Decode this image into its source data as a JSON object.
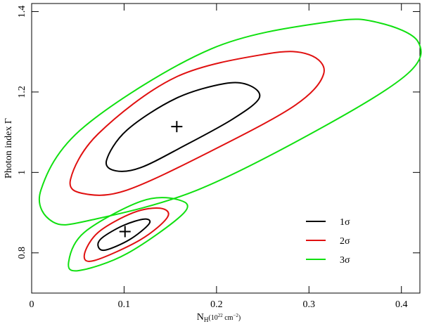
{
  "chart_data": {
    "type": "contour",
    "xlabel": [
      "N",
      "H",
      "(10",
      "22",
      " cm",
      "−2",
      ")"
    ],
    "ylabel": "Photon index Γ",
    "xlim": [
      0,
      0.42
    ],
    "ylim": [
      0.7,
      1.42
    ],
    "xticks": [
      0,
      0.1,
      0.2,
      0.3,
      0.4
    ],
    "yticks": [
      0.8,
      1,
      1.2,
      1.4
    ],
    "legend": "lower right",
    "series": [
      {
        "name": "1σ",
        "color": "#000000",
        "regions": [
          {
            "x": [
              0.081,
              0.091,
              0.118,
              0.164,
              0.217,
              0.246,
              0.236,
              0.209,
              0.156,
              0.103
            ],
            "y": [
              1.03,
              1.004,
              1.012,
              1.065,
              1.132,
              1.184,
              1.216,
              1.221,
              1.184,
              1.105
            ]
          },
          {
            "x": [
              0.072,
              0.08,
              0.106,
              0.127,
              0.122,
              0.099,
              0.076
            ],
            "y": [
              0.816,
              0.807,
              0.833,
              0.872,
              0.884,
              0.868,
              0.837
            ]
          }
        ]
      },
      {
        "name": "2σ",
        "color": "#e01010",
        "regions": [
          {
            "x": [
              0.042,
              0.057,
              0.103,
              0.194,
              0.285,
              0.316,
              0.3,
              0.255,
              0.156,
              0.072
            ],
            "y": [
              0.982,
              0.947,
              0.956,
              1.053,
              1.167,
              1.246,
              1.293,
              1.295,
              1.237,
              1.096
            ]
          },
          {
            "x": [
              0.057,
              0.068,
              0.118,
              0.147,
              0.139,
              0.11,
              0.072
            ],
            "y": [
              0.795,
              0.781,
              0.833,
              0.889,
              0.911,
              0.9,
              0.851
            ]
          }
        ]
      },
      {
        "name": "3σ",
        "color": "#10e010",
        "regions": [
          {
            "x": [
              0.01,
              0.023,
              0.065,
              0.179,
              0.316,
              0.407,
              0.418,
              0.376,
              0.323,
              0.194,
              0.057
            ],
            "y": [
              0.956,
              0.877,
              0.882,
              0.956,
              1.114,
              1.246,
              1.325,
              1.372,
              1.375,
              1.307,
              1.114
            ]
          },
          {
            "x": [
              0.04,
              0.051,
              0.103,
              0.165,
              0.157,
              0.118,
              0.057
            ],
            "y": [
              0.777,
              0.756,
              0.798,
              0.9,
              0.933,
              0.928,
              0.851
            ]
          }
        ]
      }
    ],
    "points": {
      "x": [
        0.157,
        0.101
      ],
      "y": [
        1.114,
        0.853
      ],
      "color": "#000000"
    }
  }
}
